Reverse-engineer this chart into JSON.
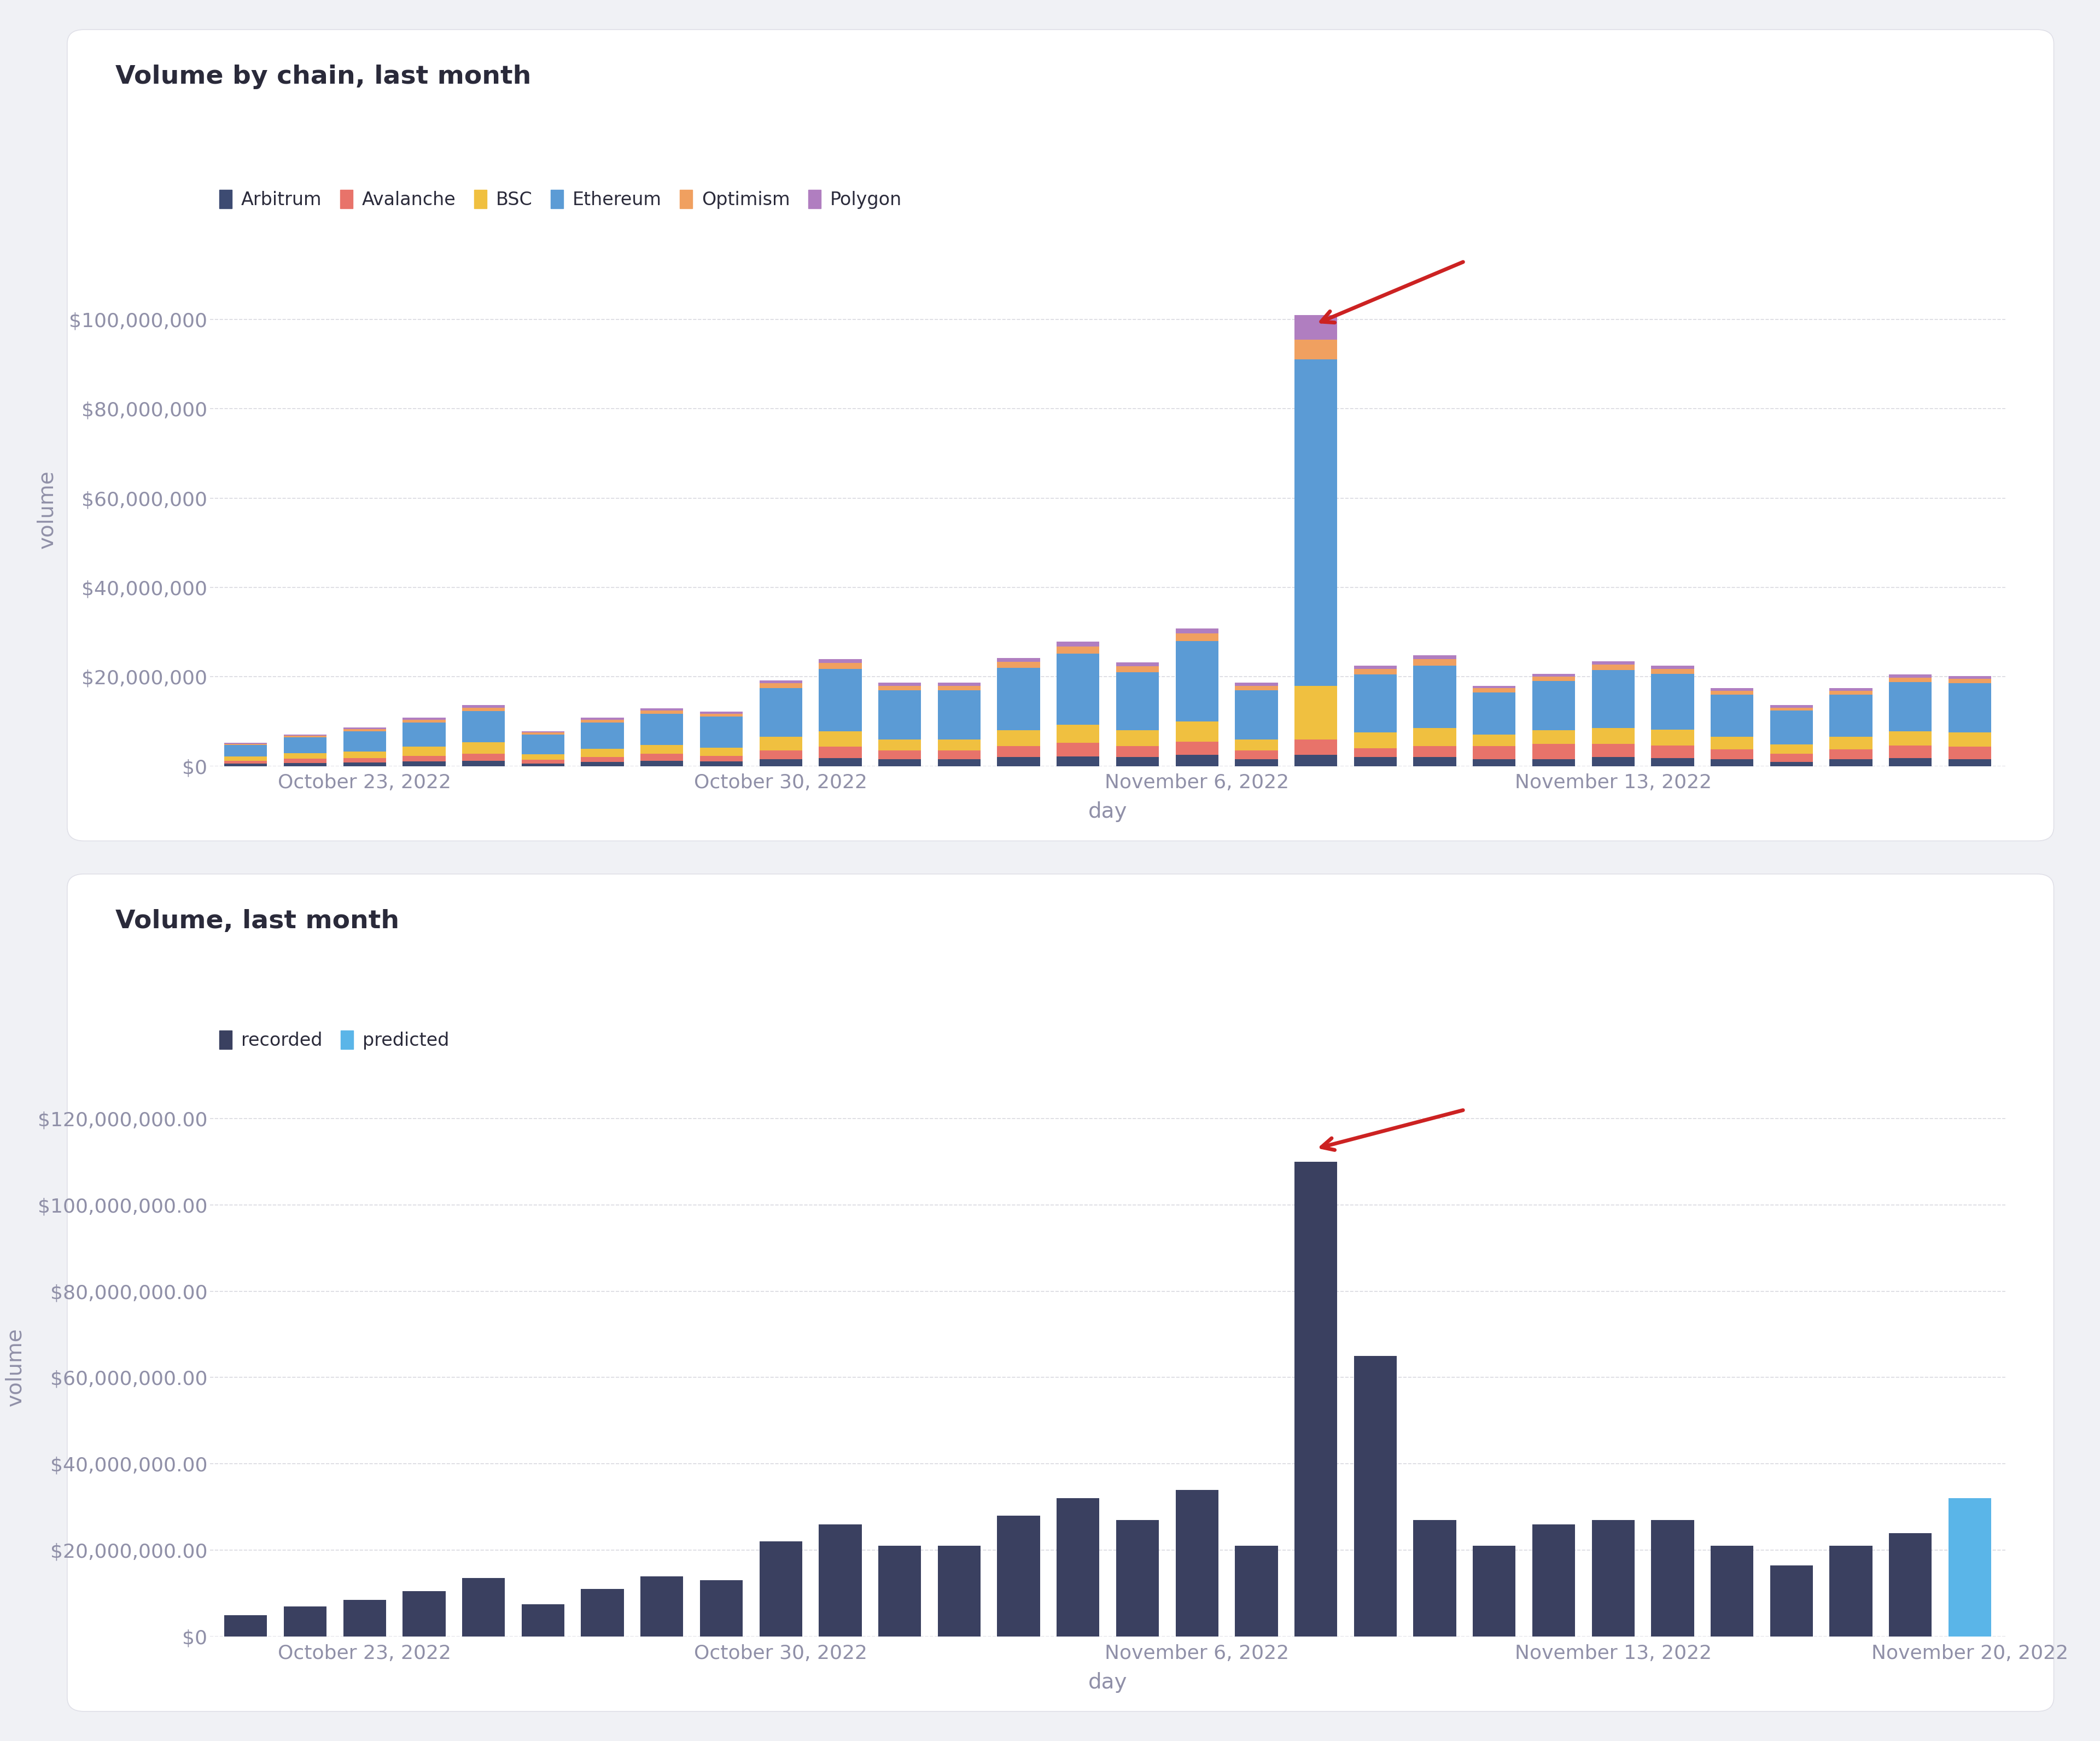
{
  "title1": "Volume by chain, last month",
  "title2": "Volume, last month",
  "xlabel": "day",
  "ylabel": "volume",
  "bg_color": "#f0f1f5",
  "panel_bg": "#ffffff",
  "chains": [
    "Arbitrum",
    "Avalanche",
    "BSC",
    "Ethereum",
    "Optimism",
    "Polygon"
  ],
  "chain_colors": [
    "#3d4b72",
    "#e8736a",
    "#f0c040",
    "#5b9bd5",
    "#f0a060",
    "#b07ec0"
  ],
  "xtick_labels1": [
    "October 23, 2022",
    "October 30, 2022",
    "November 6, 2022",
    "November 13, 2022"
  ],
  "xtick_positions1": [
    2,
    9,
    16,
    23
  ],
  "xtick_labels2": [
    "October 23, 2022",
    "October 30, 2022",
    "November 6, 2022",
    "November 13, 2022",
    "November 20, 2022"
  ],
  "xtick_positions2": [
    2,
    9,
    16,
    23,
    29
  ],
  "stacked_data": {
    "Arbitrum": [
      500000,
      700000,
      800000,
      1000000,
      1200000,
      600000,
      900000,
      1200000,
      1000000,
      1500000,
      1800000,
      1500000,
      1500000,
      2000000,
      2200000,
      2000000,
      2500000,
      1500000,
      2500000,
      2000000,
      2000000,
      1500000,
      1500000,
      2000000,
      1800000,
      1500000,
      900000,
      1500000,
      1800000,
      1500000
    ],
    "Avalanche": [
      700000,
      900000,
      1000000,
      1300000,
      1600000,
      800000,
      1100000,
      1500000,
      1300000,
      2000000,
      2500000,
      2000000,
      2000000,
      2500000,
      3000000,
      2500000,
      3000000,
      2000000,
      3500000,
      2000000,
      2500000,
      3000000,
      3500000,
      3000000,
      2800000,
      2200000,
      1800000,
      2200000,
      2800000,
      2800000
    ],
    "BSC": [
      1000000,
      1300000,
      1500000,
      2000000,
      2500000,
      1200000,
      1800000,
      2000000,
      1800000,
      3000000,
      3500000,
      2500000,
      2500000,
      3500000,
      4000000,
      3500000,
      4500000,
      2500000,
      12000000,
      3500000,
      4000000,
      2500000,
      3000000,
      3500000,
      3500000,
      2800000,
      2200000,
      2800000,
      3200000,
      3200000
    ],
    "Ethereum": [
      2500000,
      3500000,
      4500000,
      5500000,
      7000000,
      4500000,
      6000000,
      7000000,
      7000000,
      11000000,
      14000000,
      11000000,
      11000000,
      14000000,
      16000000,
      13000000,
      18000000,
      11000000,
      73000000,
      13000000,
      14000000,
      9500000,
      11000000,
      13000000,
      12500000,
      9500000,
      7500000,
      9500000,
      11000000,
      11000000
    ],
    "Optimism": [
      300000,
      400000,
      500000,
      600000,
      800000,
      400000,
      600000,
      700000,
      650000,
      1000000,
      1300000,
      1000000,
      1000000,
      1300000,
      1600000,
      1300000,
      1700000,
      1000000,
      4500000,
      1200000,
      1400000,
      900000,
      1000000,
      1200000,
      1100000,
      900000,
      700000,
      900000,
      1000000,
      1000000
    ],
    "Polygon": [
      200000,
      300000,
      300000,
      400000,
      500000,
      300000,
      400000,
      500000,
      450000,
      700000,
      900000,
      700000,
      700000,
      900000,
      1100000,
      900000,
      1100000,
      700000,
      5500000,
      800000,
      900000,
      600000,
      700000,
      800000,
      800000,
      600000,
      500000,
      600000,
      700000,
      700000
    ]
  },
  "recorded_data": [
    5000000,
    7000000,
    8500000,
    10500000,
    13500000,
    7500000,
    11000000,
    14000000,
    13000000,
    22000000,
    26000000,
    21000000,
    21000000,
    28000000,
    32000000,
    27000000,
    34000000,
    21000000,
    110000000,
    65000000,
    27000000,
    21000000,
    26000000,
    27000000,
    27000000,
    21000000,
    16500000,
    21000000,
    24000000,
    0
  ],
  "predicted_value": 32000000,
  "predicted_index": 29,
  "recorded_color": "#3a4060",
  "predicted_color": "#5ab5e8",
  "arrow_color": "#cc2222",
  "grid_color": "#d0d0d8",
  "text_color": "#9090a8",
  "title_color": "#2a2a3a",
  "legend_text_color": "#2a2a3a",
  "panel_border_color": "#e0e0e8",
  "n_bars1": 30,
  "n_bars2": 30
}
